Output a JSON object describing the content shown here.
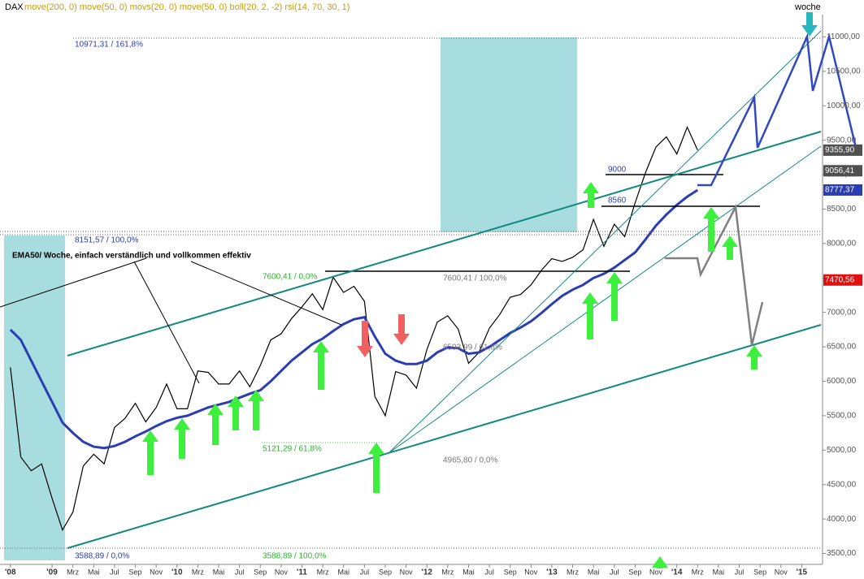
{
  "header": {
    "symbol": "DAX",
    "indicators": "move(200, 0) move(50, 0) movs(20, 0) move(50, 0) boll(20, 2, -2) rsi(14, 70, 30, 1)",
    "period": "woche"
  },
  "chart_data": {
    "type": "line",
    "x": [
      "2008-09",
      "2008-10",
      "2008-11",
      "2008-12",
      "2009-01",
      "2009-02",
      "2009-03",
      "2009-04",
      "2009-05",
      "2009-06",
      "2009-07",
      "2009-08",
      "2009-09",
      "2009-10",
      "2009-11",
      "2009-12",
      "2010-01",
      "2010-02",
      "2010-03",
      "2010-04",
      "2010-05",
      "2010-06",
      "2010-07",
      "2010-08",
      "2010-09",
      "2010-10",
      "2010-11",
      "2010-12",
      "2011-01",
      "2011-02",
      "2011-03",
      "2011-04",
      "2011-05",
      "2011-06",
      "2011-07",
      "2011-08",
      "2011-09",
      "2011-10",
      "2011-11",
      "2011-12",
      "2012-01",
      "2012-02",
      "2012-03",
      "2012-04",
      "2012-05",
      "2012-06",
      "2012-07",
      "2012-08",
      "2012-09",
      "2012-10",
      "2012-11",
      "2012-12",
      "2013-01",
      "2013-02",
      "2013-03",
      "2013-04",
      "2013-05",
      "2013-06",
      "2013-07",
      "2013-08",
      "2013-09",
      "2013-10",
      "2013-11",
      "2013-12",
      "2014-01",
      "2014-02",
      "2014-03"
    ],
    "series": [
      {
        "name": "DAX",
        "color": "#000000",
        "values": [
          6200,
          4900,
          4700,
          4800,
          4300,
          3840,
          4100,
          4770,
          4940,
          4800,
          5330,
          5460,
          5680,
          5410,
          5620,
          5960,
          5600,
          5600,
          6150,
          6130,
          5960,
          5960,
          6150,
          5920,
          6230,
          6600,
          6690,
          6910,
          7080,
          7270,
          7040,
          7510,
          7290,
          7380,
          7160,
          5780,
          5500,
          6140,
          6090,
          5900,
          6460,
          6860,
          6950,
          6760,
          6260,
          6420,
          6770,
          6970,
          7220,
          7260,
          7400,
          7610,
          7780,
          7740,
          7800,
          7910,
          8350,
          7960,
          8280,
          8100,
          8590,
          9030,
          9400,
          9550,
          9300,
          9690,
          9356
        ]
      },
      {
        "color": "#2a3db3",
        "values": [
          6750,
          6600,
          6300,
          6000,
          5700,
          5400,
          5250,
          5120,
          5050,
          5030,
          5060,
          5120,
          5200,
          5270,
          5350,
          5420,
          5470,
          5500,
          5560,
          5620,
          5660,
          5700,
          5760,
          5820,
          5870,
          6000,
          6150,
          6300,
          6420,
          6540,
          6620,
          6730,
          6830,
          6900,
          6930,
          6650,
          6400,
          6300,
          6250,
          6250,
          6300,
          6420,
          6490,
          6480,
          6400,
          6420,
          6500,
          6600,
          6700,
          6780,
          6870,
          6990,
          7120,
          7240,
          7330,
          7400,
          7500,
          7560,
          7650,
          7760,
          7870,
          8060,
          8260,
          8420,
          8560,
          8680,
          8777
        ]
      }
    ],
    "xlim": [
      "2008-08",
      "2015-03"
    ],
    "xticks": [
      {
        "value": "2008-09",
        "label": "'08"
      },
      {
        "value": "2009-01",
        "label": "'09"
      },
      {
        "value": "2009-03",
        "label": "Mrz"
      },
      {
        "value": "2009-05",
        "label": "Mai"
      },
      {
        "value": "2009-07",
        "label": "Jul"
      },
      {
        "value": "2009-09",
        "label": "Sep"
      },
      {
        "value": "2009-11",
        "label": "Nov"
      },
      {
        "value": "2010-01",
        "label": "'10"
      },
      {
        "value": "2010-03",
        "label": "Mrz"
      },
      {
        "value": "2010-05",
        "label": "Mai"
      },
      {
        "value": "2010-07",
        "label": "Jul"
      },
      {
        "value": "2010-09",
        "label": "Sep"
      },
      {
        "value": "2010-11",
        "label": "Nov"
      },
      {
        "value": "2011-01",
        "label": "'11"
      },
      {
        "value": "2011-03",
        "label": "Mrz"
      },
      {
        "value": "2011-05",
        "label": "Mai"
      },
      {
        "value": "2011-07",
        "label": "Jul"
      },
      {
        "value": "2011-09",
        "label": "Sep"
      },
      {
        "value": "2011-11",
        "label": "Nov"
      },
      {
        "value": "2012-01",
        "label": "'12"
      },
      {
        "value": "2012-03",
        "label": "Mrz"
      },
      {
        "value": "2012-05",
        "label": "Mai"
      },
      {
        "value": "2012-07",
        "label": "Jul"
      },
      {
        "value": "2012-09",
        "label": "Sep"
      },
      {
        "value": "2012-11",
        "label": "Nov"
      },
      {
        "value": "2013-01",
        "label": "'13"
      },
      {
        "value": "2013-03",
        "label": "Mrz"
      },
      {
        "value": "2013-05",
        "label": "Mai"
      },
      {
        "value": "2013-07",
        "label": "Jul"
      },
      {
        "value": "2013-09",
        "label": "Sep"
      },
      {
        "value": "2013-11",
        "label": "Nov"
      },
      {
        "value": "2014-01",
        "label": "'14"
      },
      {
        "value": "2014-03",
        "label": "Mrz"
      },
      {
        "value": "2014-05",
        "label": "Mai"
      },
      {
        "value": "2014-07",
        "label": "Jul"
      },
      {
        "value": "2014-09",
        "label": "Sep"
      },
      {
        "value": "2014-11",
        "label": "Nov"
      },
      {
        "value": "2015-01",
        "label": "'15"
      }
    ],
    "ylim": [
      3400,
      11300
    ],
    "yticks": [
      {
        "value": 3500,
        "label": "3500,00"
      },
      {
        "value": 4000,
        "label": "4000,00"
      },
      {
        "value": 4500,
        "label": "4500,00"
      },
      {
        "value": 5000,
        "label": "5000,00"
      },
      {
        "value": 5500,
        "label": "5500,00"
      },
      {
        "value": 6000,
        "label": "6000,00"
      },
      {
        "value": 6500,
        "label": "6500,00"
      },
      {
        "value": 7000,
        "label": "7000,00"
      },
      {
        "value": 7500,
        "label": "7500,00"
      },
      {
        "value": 8000,
        "label": "8000,00"
      },
      {
        "value": 8500,
        "label": "8500,00"
      },
      {
        "value": 9000,
        "label": "9000,00"
      },
      {
        "value": 9500,
        "label": "9500,00"
      },
      {
        "value": 10000,
        "label": "10000,00"
      },
      {
        "value": 10500,
        "label": "10500,00"
      },
      {
        "value": 11000,
        "label": "11000,00"
      }
    ],
    "price_labels": [
      {
        "value": 9355.9,
        "label": "9355,90",
        "color": "#505050"
      },
      {
        "value": 9056.41,
        "label": "9056,41",
        "color": "#505050"
      },
      {
        "value": 8777.37,
        "label": "8777,37",
        "color": "#2a3db3"
      },
      {
        "value": 7470.56,
        "label": "7470,56",
        "color": "#e01010"
      }
    ],
    "annotations": {
      "fib_top": "10971,31 / 161,8%",
      "fib_100": "8151,57 / 100,0%",
      "hi_0": "7600,41 / 0,0%",
      "hi_100": "7600,41 / 100,0%",
      "mid_618": "6593,99 / 61,8%",
      "low_618": "5121,29 / 61,8%",
      "low_0": "4965,80 / 0,0%",
      "base_0": "3588,89 / 0,0%",
      "base_100": "3588,89 / 100,0%",
      "lvl_9000": "9000",
      "lvl_8560": "8560",
      "note": "EMA50/ Woche, einfach verständlich und vollkommen effektiv"
    }
  }
}
